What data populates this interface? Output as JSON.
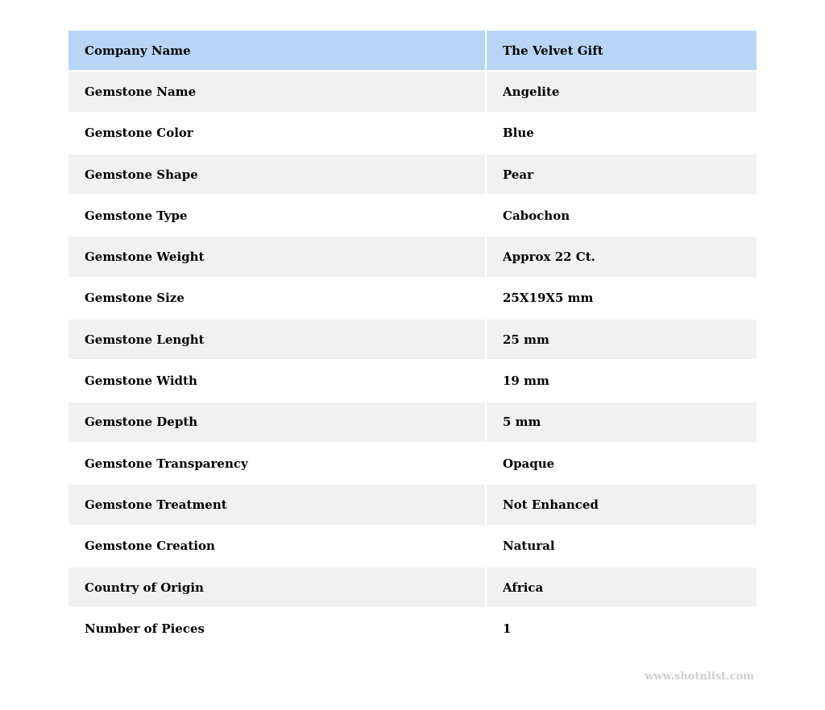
{
  "header": {
    "label": "Company Name",
    "value": "The Velvet Gift"
  },
  "rows": [
    {
      "label": "Gemstone Name",
      "value": "Angelite"
    },
    {
      "label": "Gemstone Color",
      "value": "Blue"
    },
    {
      "label": "Gemstone Shape",
      "value": "Pear"
    },
    {
      "label": "Gemstone Type",
      "value": "Cabochon"
    },
    {
      "label": "Gemstone Weight",
      "value": "Approx 22 Ct."
    },
    {
      "label": "Gemstone Size",
      "value": "25X19X5 mm"
    },
    {
      "label": "Gemstone Lenght",
      "value": "25 mm"
    },
    {
      "label": "Gemstone Width",
      "value": "19 mm"
    },
    {
      "label": "Gemstone Depth",
      "value": "5 mm"
    },
    {
      "label": "Gemstone Transparency",
      "value": "Opaque"
    },
    {
      "label": "Gemstone Treatment",
      "value": "Not Enhanced"
    },
    {
      "label": "Gemstone Creation",
      "value": "Natural"
    },
    {
      "label": "Country of Origin",
      "value": "Africa"
    },
    {
      "label": "Number of Pieces",
      "value": "1"
    }
  ],
  "watermark": "www.shotnlist.com",
  "colors": {
    "header_bg": "#b8d5f5",
    "stripe_bg": "#f1f1f1"
  }
}
